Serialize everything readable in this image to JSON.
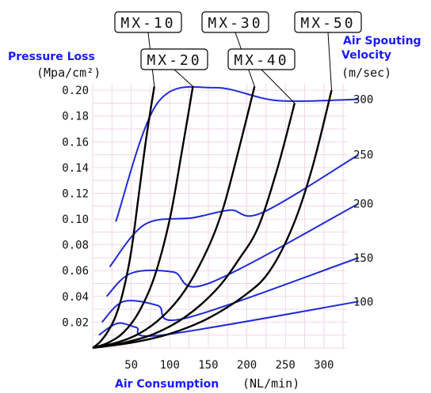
{
  "chart_data": {
    "type": "line",
    "title": "",
    "ylabel": "Pressure Loss",
    "ylabel_unit": "(Mpa/cm²)",
    "right_label_line1": "Air Spouting",
    "right_label_line2": "Velocity",
    "right_label_unit": "(m/sec)",
    "xlabel": "Air Consumption",
    "xlabel_unit": "(NL/min)",
    "xlim": [
      0,
      330
    ],
    "ylim": [
      0,
      0.205
    ],
    "x_ticks": [
      50,
      100,
      150,
      200,
      250,
      300
    ],
    "y_ticks": [
      "0.02",
      "0.04",
      "0.06",
      "0.08",
      "0.10",
      "0.12",
      "0.14",
      "0.16",
      "0.18",
      "0.20"
    ],
    "grid": true,
    "series": [
      {
        "name": "MX-10",
        "color": "#000000",
        "points": [
          [
            0,
            0
          ],
          [
            10,
            0.005
          ],
          [
            20,
            0.013
          ],
          [
            30,
            0.025
          ],
          [
            40,
            0.045
          ],
          [
            50,
            0.075
          ],
          [
            60,
            0.12
          ],
          [
            70,
            0.165
          ],
          [
            80,
            0.203
          ]
        ]
      },
      {
        "name": "MX-20",
        "color": "#000000",
        "points": [
          [
            0,
            0
          ],
          [
            20,
            0.004
          ],
          [
            40,
            0.012
          ],
          [
            60,
            0.028
          ],
          [
            80,
            0.055
          ],
          [
            100,
            0.1
          ],
          [
            115,
            0.15
          ],
          [
            125,
            0.185
          ],
          [
            130,
            0.203
          ]
        ]
      },
      {
        "name": "MX-30",
        "color": "#000000",
        "points": [
          [
            0,
            0
          ],
          [
            30,
            0.004
          ],
          [
            60,
            0.011
          ],
          [
            90,
            0.024
          ],
          [
            120,
            0.045
          ],
          [
            150,
            0.078
          ],
          [
            170,
            0.11
          ],
          [
            190,
            0.155
          ],
          [
            210,
            0.203
          ]
        ]
      },
      {
        "name": "MX-40",
        "color": "#000000",
        "points": [
          [
            0,
            0
          ],
          [
            40,
            0.004
          ],
          [
            80,
            0.011
          ],
          [
            120,
            0.024
          ],
          [
            160,
            0.045
          ],
          [
            190,
            0.069
          ],
          [
            215,
            0.094
          ],
          [
            240,
            0.14
          ],
          [
            262,
            0.19
          ]
        ]
      },
      {
        "name": "MX-50",
        "color": "#000000",
        "points": [
          [
            0,
            0
          ],
          [
            50,
            0.004
          ],
          [
            100,
            0.011
          ],
          [
            150,
            0.023
          ],
          [
            200,
            0.042
          ],
          [
            230,
            0.06
          ],
          [
            260,
            0.095
          ],
          [
            285,
            0.14
          ],
          [
            310,
            0.2
          ]
        ]
      }
    ],
    "velocity_curves": [
      {
        "label": "100",
        "color": "#1f2bd6",
        "points": [
          [
            8,
            0.01
          ],
          [
            32,
            0.019
          ],
          [
            56,
            0.016
          ],
          [
            90,
            0.01
          ],
          [
            345,
            0.036
          ]
        ]
      },
      {
        "label": "150",
        "color": "#1f2bd6",
        "points": [
          [
            12,
            0.02
          ],
          [
            40,
            0.036
          ],
          [
            84,
            0.033
          ],
          [
            120,
            0.023
          ],
          [
            345,
            0.07
          ]
        ]
      },
      {
        "label": "200",
        "color": "#1f2bd6",
        "points": [
          [
            18,
            0.04
          ],
          [
            50,
            0.058
          ],
          [
            104,
            0.059
          ],
          [
            150,
            0.05
          ],
          [
            345,
            0.112
          ]
        ]
      },
      {
        "label": "250",
        "color": "#1f2bd6",
        "points": [
          [
            22,
            0.063
          ],
          [
            68,
            0.096
          ],
          [
            130,
            0.101
          ],
          [
            178,
            0.107
          ],
          [
            220,
            0.105
          ],
          [
            345,
            0.15
          ]
        ]
      },
      {
        "label": "300",
        "color": "#1f2bd6",
        "points": [
          [
            30,
            0.098
          ],
          [
            84,
            0.19
          ],
          [
            158,
            0.202
          ],
          [
            240,
            0.192
          ],
          [
            345,
            0.193
          ]
        ]
      }
    ],
    "model_labels": [
      "MX-10",
      "MX-20",
      "MX-30",
      "MX-40",
      "MX-50"
    ]
  }
}
